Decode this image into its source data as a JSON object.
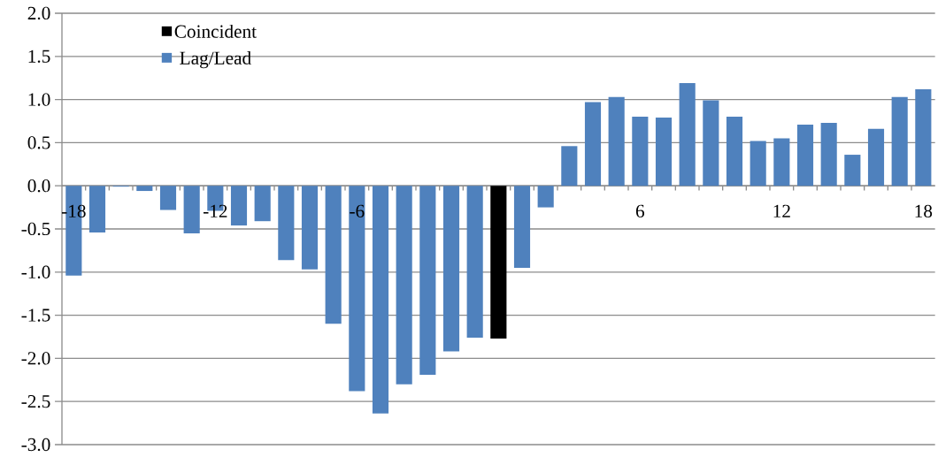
{
  "chart_data": {
    "type": "bar",
    "categories": [
      "-18",
      null,
      null,
      null,
      null,
      null,
      "-12",
      null,
      null,
      null,
      null,
      null,
      "-6",
      null,
      null,
      null,
      null,
      null,
      null,
      null,
      null,
      null,
      null,
      null,
      "6",
      null,
      null,
      null,
      null,
      null,
      "12",
      null,
      null,
      null,
      null,
      null,
      "18"
    ],
    "series": [
      {
        "name": "Coincident",
        "color": "#000000",
        "values": [
          null,
          null,
          null,
          null,
          null,
          null,
          null,
          null,
          null,
          null,
          null,
          null,
          null,
          null,
          null,
          null,
          null,
          null,
          -1.77,
          null,
          null,
          null,
          null,
          null,
          null,
          null,
          null,
          null,
          null,
          null,
          null,
          null,
          null,
          null,
          null,
          null,
          null
        ]
      },
      {
        "name": "Lag/Lead",
        "color": "#4f81bd",
        "values": [
          -1.04,
          -0.54,
          -0.01,
          -0.06,
          -0.28,
          -0.55,
          -0.29,
          -0.46,
          -0.41,
          -0.86,
          -0.97,
          -1.6,
          -2.38,
          -2.64,
          -2.3,
          -2.19,
          -1.92,
          -1.76,
          null,
          -0.95,
          -0.25,
          0.46,
          0.97,
          1.03,
          0.8,
          0.79,
          1.19,
          0.99,
          0.8,
          0.52,
          0.55,
          0.71,
          0.73,
          0.36,
          0.66,
          1.03,
          1.12
        ]
      }
    ],
    "ylim": [
      -3,
      2
    ],
    "yticks": [
      {
        "value": -3,
        "label": "-3.0"
      },
      {
        "value": -2.5,
        "label": "-2.5"
      },
      {
        "value": -2,
        "label": "-2.0"
      },
      {
        "value": -1.5,
        "label": "-1.5"
      },
      {
        "value": -1,
        "label": "-1.0"
      },
      {
        "value": -0.5,
        "label": "-0.5"
      },
      {
        "value": 0,
        "label": "0.0"
      },
      {
        "value": 0.5,
        "label": "0.5"
      },
      {
        "value": 1,
        "label": "1.0"
      },
      {
        "value": 1.5,
        "label": "1.5"
      },
      {
        "value": 2,
        "label": "2.0"
      }
    ],
    "grid": "y",
    "legend": "top left"
  }
}
